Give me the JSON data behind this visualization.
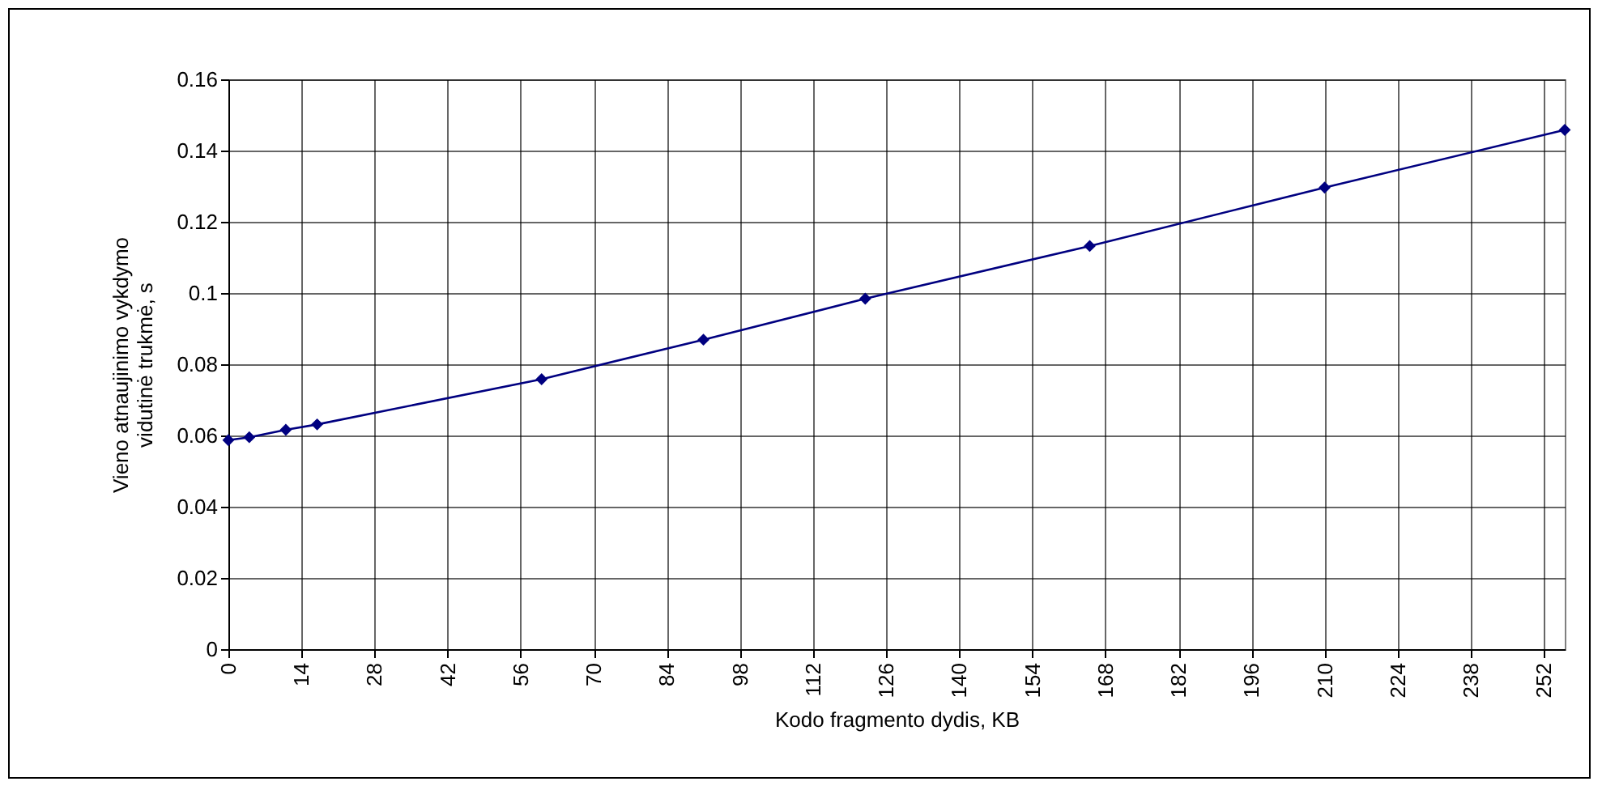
{
  "chart_data": {
    "type": "line",
    "xlabel": "Kodo fragmento dydis, KB",
    "ylabel": "Vieno atnaujinimo vykdymo\nvidutinė trukmė, s",
    "x": [
      0,
      4,
      11,
      17,
      60,
      91,
      122,
      165,
      210,
      256
    ],
    "series": [
      {
        "color": "#000080",
        "values": [
          0.0587,
          0.0595,
          0.0616,
          0.0631,
          0.0758,
          0.0869,
          0.0984,
          0.1132,
          0.1296,
          0.1458
        ]
      }
    ],
    "xlim": [
      0,
      256
    ],
    "xticks": [
      0,
      14,
      28,
      42,
      56,
      70,
      84,
      98,
      112,
      126,
      140,
      154,
      168,
      182,
      196,
      210,
      224,
      238,
      252
    ],
    "ylim": [
      0,
      0.16
    ],
    "yticks": [
      0,
      0.02,
      0.04,
      0.06,
      0.08,
      0.1,
      0.12,
      0.14,
      0.16
    ],
    "grid": true,
    "marker": "diamond",
    "line_style": "solid"
  }
}
